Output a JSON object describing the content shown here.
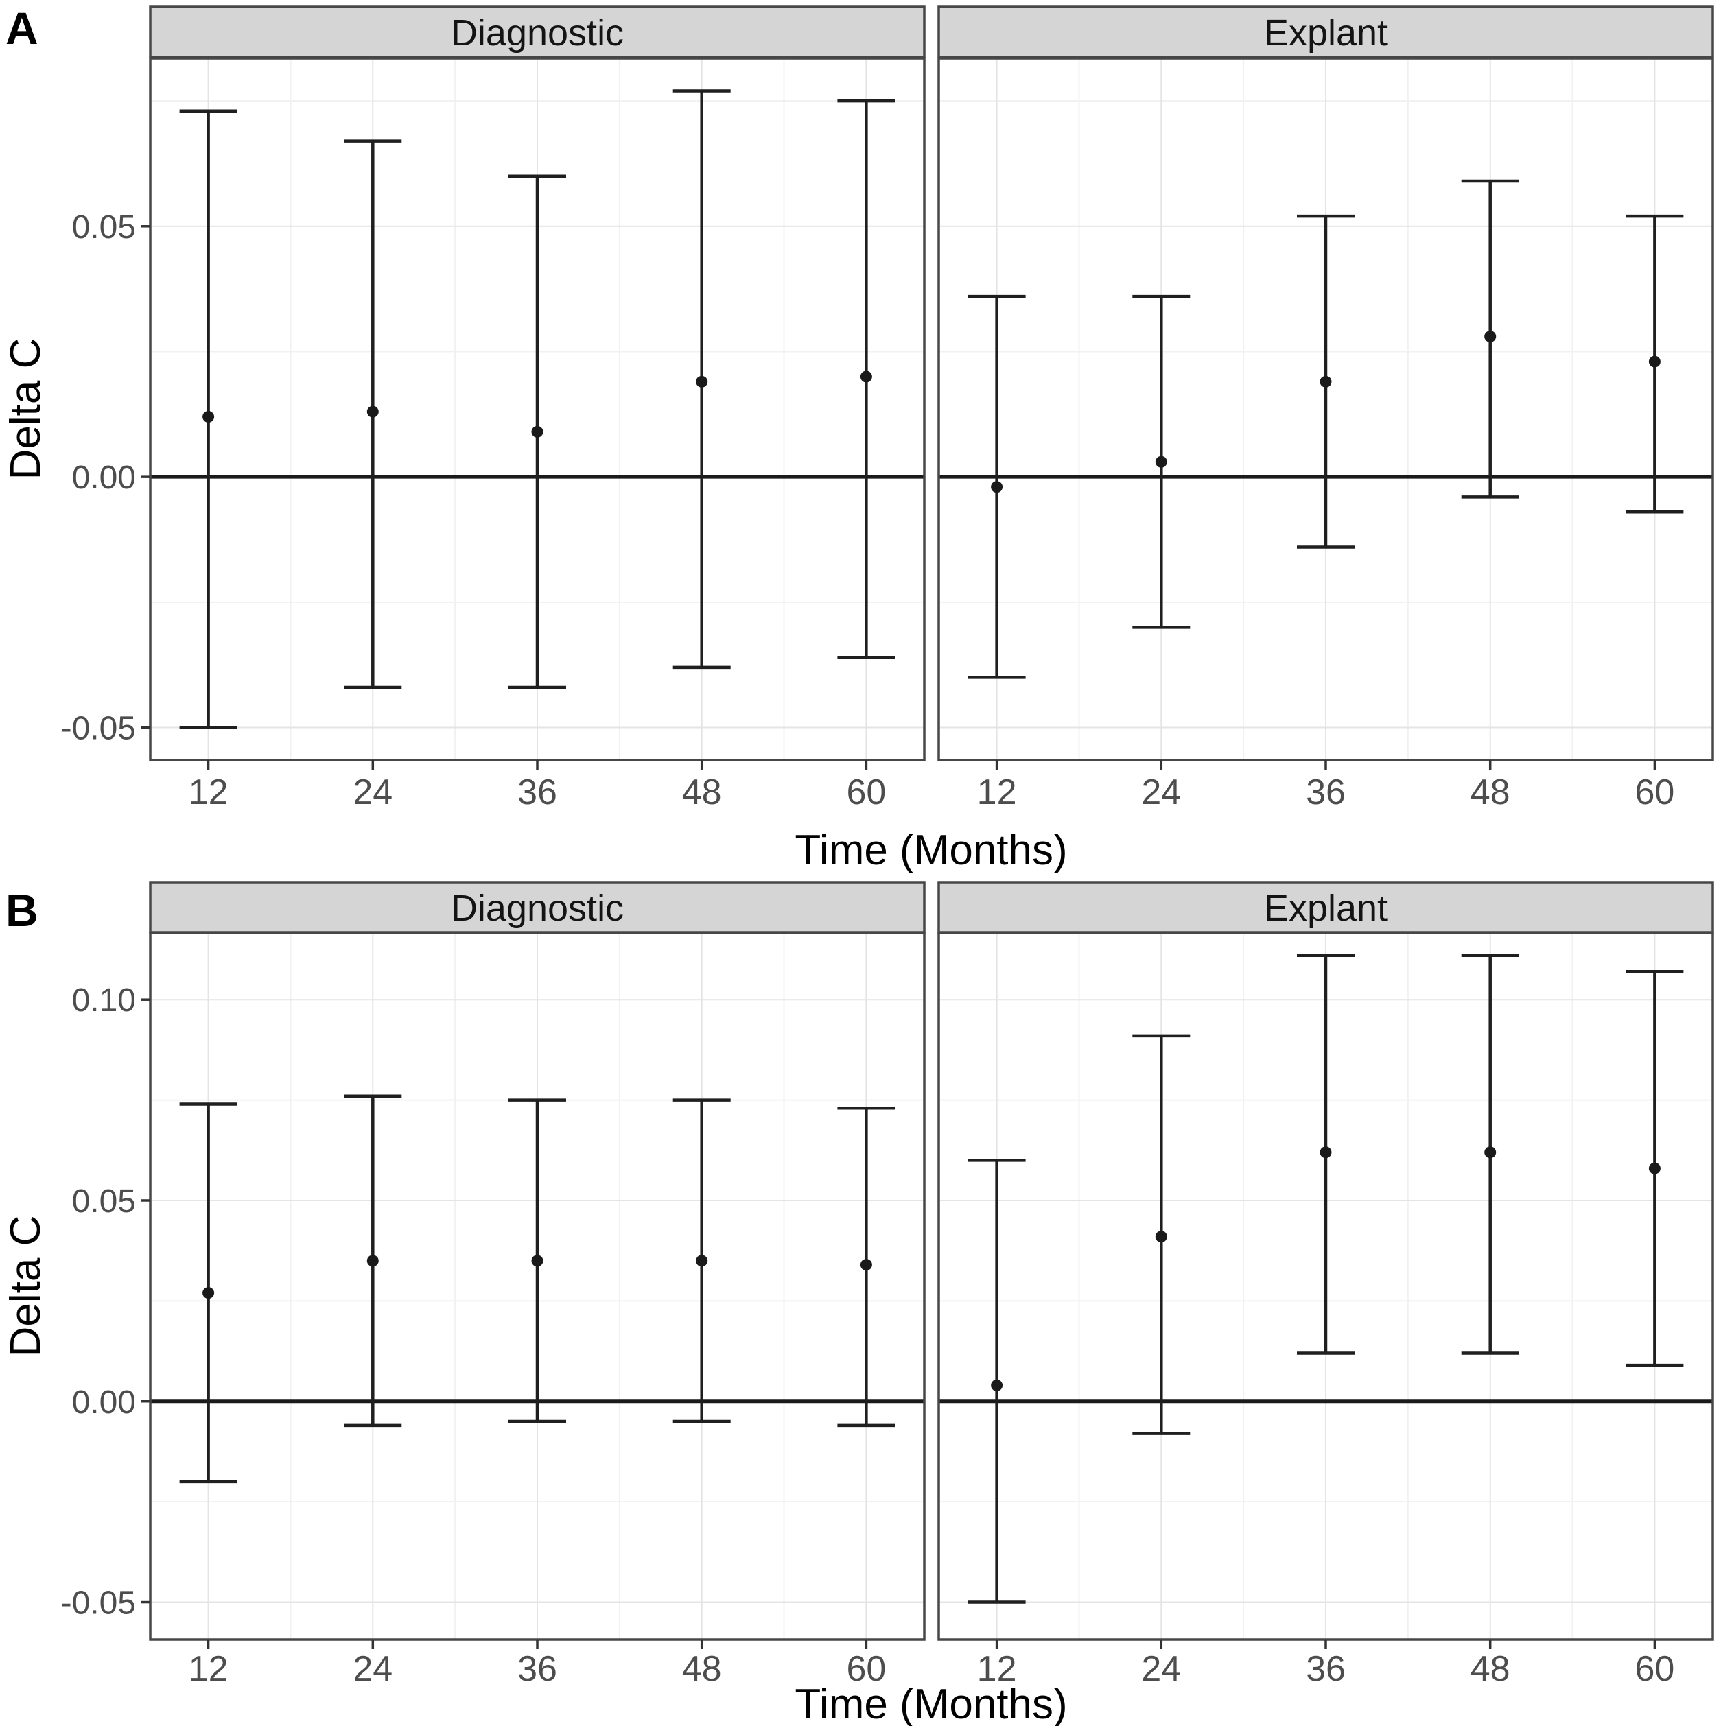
{
  "figure": {
    "background": "#ffffff",
    "panel_count": 2
  },
  "colors": {
    "point": "#1a1a1a",
    "errorbar": "#1f1f1f",
    "zero_line": "#1a1a1a",
    "panel_border": "#474747",
    "strip_fill": "#d5d5d5",
    "strip_border": "#474747",
    "grid_major": "#e4e4e4",
    "grid_minor": "#f1f1f1",
    "tick_mark": "#333333",
    "tick_label": "#4d4d4d",
    "panel_bg": "#ffffff",
    "text": "#000000"
  },
  "chart_data": [
    {
      "type": "errorbar",
      "panel": "A",
      "xlabel": "Time (Months)",
      "ylabel": "Delta C",
      "x": [
        12,
        24,
        36,
        48,
        60
      ],
      "x_tick_labels": [
        "12",
        "24",
        "36",
        "48",
        "60"
      ],
      "ylim": [
        -0.0565,
        0.0835
      ],
      "yticks": {
        "major": [
          0.05,
          0.0,
          -0.05
        ],
        "major_labels": [
          "0.05",
          "0.00",
          "-0.05"
        ],
        "minor": [
          0.075,
          0.025,
          -0.025
        ]
      },
      "hline": 0.0,
      "grid": true,
      "legend_position": "none",
      "facets": [
        {
          "label": "Diagnostic",
          "y": [
            0.012,
            0.013,
            0.009,
            0.019,
            0.02
          ],
          "ymin": [
            -0.05,
            -0.042,
            -0.042,
            -0.038,
            -0.036
          ],
          "ymax": [
            0.073,
            0.067,
            0.06,
            0.077,
            0.075
          ]
        },
        {
          "label": "Explant",
          "y": [
            -0.002,
            0.003,
            0.019,
            0.028,
            0.023
          ],
          "ymin": [
            -0.04,
            -0.03,
            -0.014,
            -0.004,
            -0.007
          ],
          "ymax": [
            0.036,
            0.036,
            0.052,
            0.059,
            0.052
          ]
        }
      ]
    },
    {
      "type": "errorbar",
      "panel": "B",
      "xlabel": "Time (Months)",
      "ylabel": "Delta C",
      "x": [
        12,
        24,
        36,
        48,
        60
      ],
      "x_tick_labels": [
        "12",
        "24",
        "36",
        "48",
        "60"
      ],
      "ylim": [
        -0.0593,
        0.1166
      ],
      "yticks": {
        "major": [
          0.1,
          0.05,
          0.0,
          -0.05
        ],
        "major_labels": [
          "0.10",
          "0.05",
          "0.00",
          "-0.05"
        ],
        "minor": [
          0.075,
          0.025,
          -0.025
        ]
      },
      "hline": 0.0,
      "grid": true,
      "legend_position": "none",
      "facets": [
        {
          "label": "Diagnostic",
          "y": [
            0.027,
            0.035,
            0.035,
            0.035,
            0.034
          ],
          "ymin": [
            -0.02,
            -0.006,
            -0.005,
            -0.005,
            -0.006
          ],
          "ymax": [
            0.074,
            0.076,
            0.075,
            0.075,
            0.073
          ]
        },
        {
          "label": "Explant",
          "y": [
            0.004,
            0.041,
            0.062,
            0.062,
            0.058
          ],
          "ymin": [
            -0.05,
            -0.008,
            0.012,
            0.012,
            0.009
          ],
          "ymax": [
            0.06,
            0.091,
            0.111,
            0.111,
            0.107
          ]
        }
      ]
    }
  ]
}
